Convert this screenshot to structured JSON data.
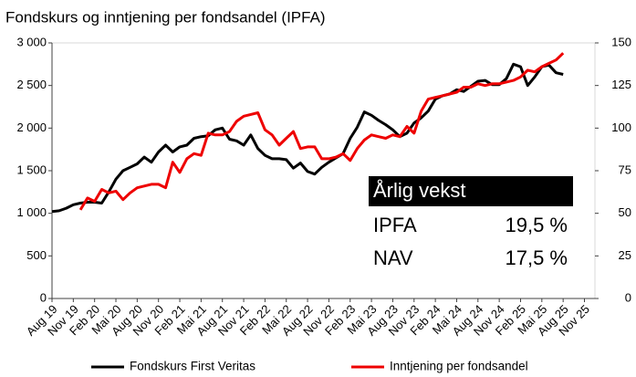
{
  "chart_data": {
    "type": "line",
    "title": "Fondskurs og inntjening per fondsandel (IPFA)",
    "categories": [
      "Aug 19",
      null,
      null,
      "Nov 19",
      null,
      null,
      "Feb 20",
      null,
      null,
      "Mai 20",
      null,
      null,
      "Aug 20",
      null,
      null,
      "Nov 20",
      null,
      null,
      "Feb 21",
      null,
      null,
      "Mai 21",
      null,
      null,
      "Aug 21",
      null,
      null,
      "Nov 21",
      null,
      null,
      "Feb 22",
      null,
      null,
      "Mai 22",
      null,
      null,
      "Aug 22",
      null,
      null,
      "Nov 22",
      null,
      null,
      "Feb 23",
      null,
      null,
      "Mai 23",
      null,
      null,
      "Aug 23",
      null,
      null,
      "Nov 23",
      null,
      null,
      "Feb 24",
      null,
      null,
      "Mai 24",
      null,
      null,
      "Aug 24",
      null,
      null,
      "Nov 24",
      null,
      null,
      "Feb 25",
      null,
      null,
      "Mai 25",
      null,
      null,
      "Aug 25",
      null,
      null,
      "Nov 25"
    ],
    "series": [
      {
        "name": "Fondskurs First Veritas",
        "color": "#000000",
        "axis": "y",
        "values": [
          1020,
          1030,
          1060,
          1100,
          1120,
          1130,
          1130,
          1120,
          1250,
          1400,
          1500,
          1540,
          1580,
          1660,
          1600,
          1720,
          1800,
          1720,
          1780,
          1800,
          1880,
          1900,
          1910,
          1980,
          2000,
          1870,
          1850,
          1800,
          1920,
          1760,
          1680,
          1640,
          1640,
          1630,
          1530,
          1590,
          1490,
          1460,
          1540,
          1600,
          1650,
          1700,
          1880,
          2010,
          2190,
          2150,
          2090,
          2040,
          1980,
          1900,
          1940,
          2060,
          2120,
          2200,
          2340,
          2380,
          2400,
          2450,
          2430,
          2490,
          2550,
          2560,
          2510,
          2510,
          2580,
          2750,
          2720,
          2500,
          2600,
          2720,
          2740,
          2650,
          2630,
          null,
          null,
          null
        ]
      },
      {
        "name": "Inntjening per fondsandel",
        "color": "#ee0000",
        "axis": "y2",
        "values": [
          null,
          null,
          null,
          null,
          52,
          59,
          57,
          64,
          62,
          63,
          58,
          62,
          65,
          66,
          67,
          67,
          65,
          80,
          74,
          82,
          85,
          84,
          97,
          96,
          96,
          98,
          104,
          107,
          108,
          109,
          99,
          96,
          90,
          94,
          98,
          88,
          89,
          89,
          82,
          82,
          83,
          85,
          81,
          88,
          93,
          96,
          95,
          94,
          96,
          95,
          101,
          97,
          110,
          117,
          118,
          119,
          120,
          121,
          124,
          124,
          126,
          125,
          126,
          126,
          127,
          128,
          130,
          134,
          133,
          136,
          138,
          140,
          144,
          null,
          null,
          null
        ]
      }
    ],
    "ylim": [
      0,
      3000
    ],
    "yticks": [
      0,
      500,
      {
        "value": 1000,
        "label": "1 000"
      },
      {
        "value": 1500,
        "label": "1 500"
      },
      {
        "value": 2000,
        "label": "2 000"
      },
      {
        "value": 2500,
        "label": "2 500"
      },
      {
        "value": 3000,
        "label": "3 000"
      }
    ],
    "y2lim": [
      0,
      150
    ],
    "y2ticks": [
      0,
      25,
      50,
      75,
      100,
      125,
      150
    ],
    "annotation": {
      "title": "Årlig vekst",
      "rows": [
        [
          "IPFA",
          "19,5 %"
        ],
        [
          "NAV",
          "17,5 %"
        ]
      ]
    },
    "legend": "bottom"
  }
}
